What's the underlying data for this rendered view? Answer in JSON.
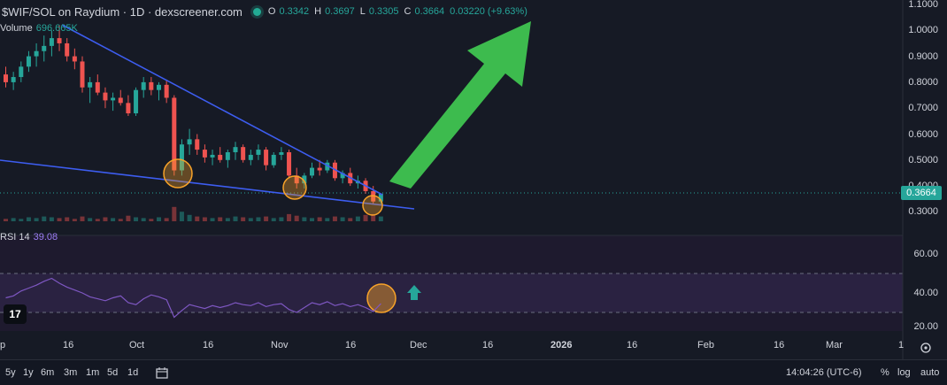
{
  "header": {
    "title": "$WIF/SOL on Raydium · 1D · dexscreener.com",
    "o_label": "O",
    "o_value": "0.3342",
    "h_label": "H",
    "h_value": "0.3697",
    "l_label": "L",
    "l_value": "0.3305",
    "c_label": "C",
    "c_value": "0.3664",
    "change": "0.03220 (+9.63%)"
  },
  "volume": {
    "label": "Volume",
    "value": "696.665K"
  },
  "rsi": {
    "label": "RSI 14",
    "value": "39.08"
  },
  "price_axis": [
    "1.1000",
    "1.0000",
    "0.9000",
    "0.8000",
    "0.7000",
    "0.6000",
    "0.5000",
    "0.4000",
    "0.3000"
  ],
  "current_price": "0.3664",
  "rsi_axis": [
    "60.00",
    "40.00",
    "20.00"
  ],
  "time_axis": [
    "p",
    "16",
    "Oct",
    "16",
    "Nov",
    "16",
    "Dec",
    "16",
    "2026",
    "16",
    "Feb",
    "16",
    "Mar",
    "1"
  ],
  "bottom_bar": {
    "ranges": [
      "5y",
      "1y",
      "6m",
      "3m",
      "1m",
      "5d",
      "1d"
    ],
    "time": "14:04:26 (UTC-6)",
    "percent": "%",
    "log": "log",
    "auto": "auto"
  },
  "tv_logo": "17",
  "colors": {
    "up": "#26a69a",
    "down": "#ef5350",
    "trendline": "#3d5df0",
    "arrow": "#3dbb4e",
    "rsi": "#7e57c2",
    "highlight": "#f7a229"
  },
  "chart_data": {
    "type": "candlestick",
    "price_ylim": [
      0.25,
      1.12
    ],
    "rsi_ylim": [
      15,
      75
    ],
    "candles": [
      [
        0.83,
        0.86,
        0.78,
        0.8
      ],
      [
        0.8,
        0.84,
        0.77,
        0.82
      ],
      [
        0.82,
        0.88,
        0.8,
        0.86
      ],
      [
        0.86,
        0.92,
        0.84,
        0.9
      ],
      [
        0.9,
        0.95,
        0.86,
        0.92
      ],
      [
        0.92,
        0.98,
        0.88,
        0.94
      ],
      [
        0.94,
        1.0,
        0.9,
        0.97
      ],
      [
        0.97,
        1.02,
        0.92,
        0.95
      ],
      [
        0.95,
        0.97,
        0.88,
        0.9
      ],
      [
        0.9,
        0.93,
        0.85,
        0.88
      ],
      [
        0.88,
        0.9,
        0.76,
        0.78
      ],
      [
        0.78,
        0.82,
        0.72,
        0.8
      ],
      [
        0.8,
        0.83,
        0.75,
        0.76
      ],
      [
        0.76,
        0.78,
        0.7,
        0.73
      ],
      [
        0.73,
        0.76,
        0.69,
        0.74
      ],
      [
        0.74,
        0.77,
        0.71,
        0.72
      ],
      [
        0.72,
        0.75,
        0.67,
        0.68
      ],
      [
        0.68,
        0.78,
        0.67,
        0.77
      ],
      [
        0.77,
        0.82,
        0.74,
        0.8
      ],
      [
        0.8,
        0.82,
        0.75,
        0.77
      ],
      [
        0.77,
        0.8,
        0.73,
        0.79
      ],
      [
        0.79,
        0.81,
        0.72,
        0.74
      ],
      [
        0.74,
        0.75,
        0.44,
        0.46
      ],
      [
        0.46,
        0.58,
        0.44,
        0.56
      ],
      [
        0.56,
        0.62,
        0.52,
        0.58
      ],
      [
        0.58,
        0.6,
        0.52,
        0.54
      ],
      [
        0.54,
        0.56,
        0.49,
        0.51
      ],
      [
        0.51,
        0.54,
        0.48,
        0.52
      ],
      [
        0.52,
        0.55,
        0.49,
        0.5
      ],
      [
        0.5,
        0.54,
        0.47,
        0.53
      ],
      [
        0.53,
        0.57,
        0.5,
        0.55
      ],
      [
        0.55,
        0.56,
        0.49,
        0.5
      ],
      [
        0.5,
        0.54,
        0.48,
        0.52
      ],
      [
        0.52,
        0.56,
        0.5,
        0.54
      ],
      [
        0.54,
        0.55,
        0.46,
        0.48
      ],
      [
        0.48,
        0.53,
        0.47,
        0.52
      ],
      [
        0.52,
        0.55,
        0.5,
        0.53
      ],
      [
        0.53,
        0.54,
        0.43,
        0.44
      ],
      [
        0.44,
        0.47,
        0.39,
        0.41
      ],
      [
        0.41,
        0.45,
        0.39,
        0.44
      ],
      [
        0.44,
        0.49,
        0.43,
        0.47
      ],
      [
        0.47,
        0.5,
        0.44,
        0.46
      ],
      [
        0.46,
        0.5,
        0.45,
        0.49
      ],
      [
        0.49,
        0.5,
        0.42,
        0.43
      ],
      [
        0.43,
        0.46,
        0.41,
        0.45
      ],
      [
        0.45,
        0.47,
        0.4,
        0.41
      ],
      [
        0.41,
        0.44,
        0.39,
        0.42
      ],
      [
        0.42,
        0.43,
        0.37,
        0.38
      ],
      [
        0.38,
        0.4,
        0.33,
        0.34
      ],
      [
        0.34,
        0.37,
        0.33,
        0.37
      ]
    ],
    "volumes": [
      3,
      4,
      3,
      5,
      4,
      6,
      5,
      4,
      5,
      3,
      6,
      4,
      3,
      5,
      4,
      3,
      7,
      5,
      4,
      3,
      5,
      4,
      18,
      12,
      8,
      6,
      5,
      4,
      5,
      4,
      6,
      5,
      4,
      5,
      6,
      4,
      5,
      9,
      7,
      5,
      4,
      5,
      4,
      6,
      5,
      4,
      6,
      8,
      9,
      6
    ],
    "rsi": [
      45,
      47,
      52,
      55,
      58,
      62,
      65,
      60,
      56,
      53,
      50,
      46,
      44,
      42,
      45,
      47,
      40,
      38,
      44,
      48,
      46,
      43,
      25,
      32,
      38,
      36,
      34,
      37,
      35,
      37,
      40,
      38,
      37,
      40,
      36,
      38,
      39,
      33,
      30,
      35,
      40,
      38,
      41,
      37,
      39,
      36,
      38,
      35,
      31,
      39
    ],
    "annotations": [
      "falling wedge",
      "three support circles",
      "breakout arrow"
    ]
  }
}
